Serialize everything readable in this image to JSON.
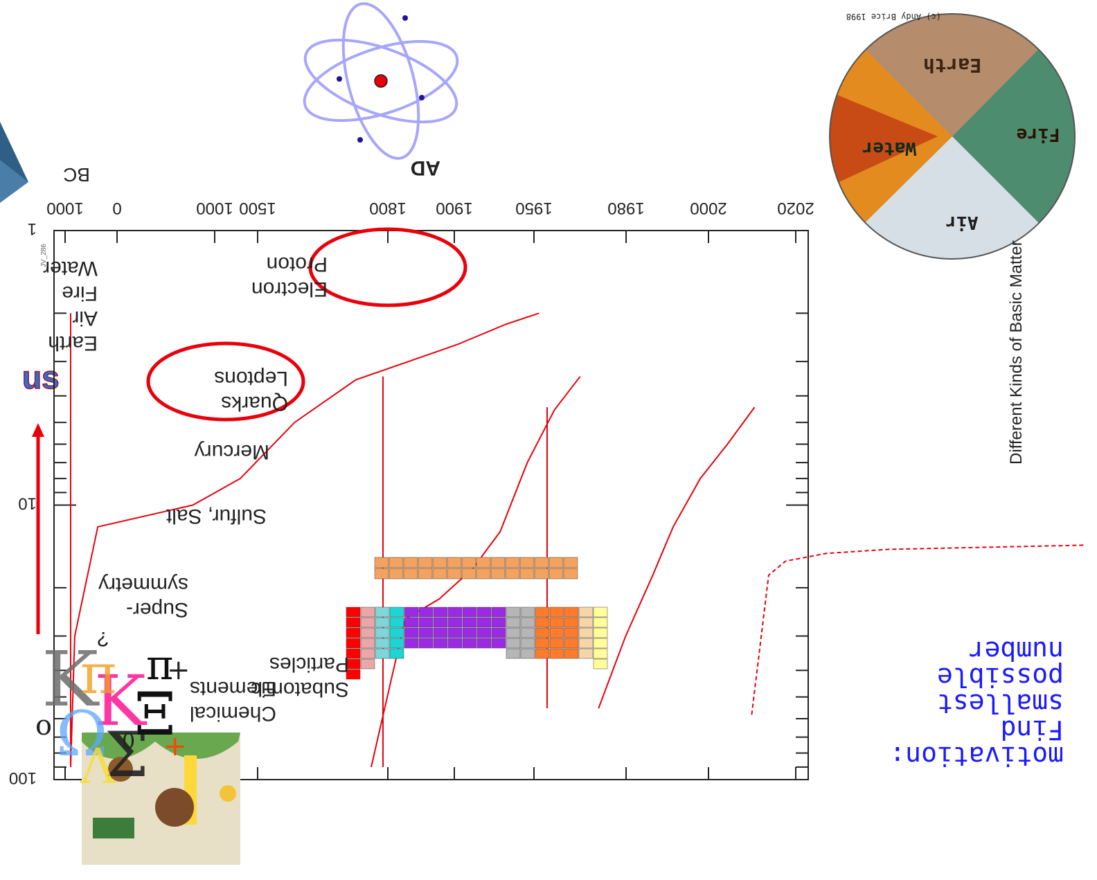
{
  "chart_data": {
    "type": "line",
    "ylabel": "Different Kinds of Basic Matter",
    "y_scale": "log",
    "ylim": [
      1,
      100
    ],
    "y_ticks": [
      "1",
      "10",
      "100"
    ],
    "x_ticks": [
      "1000",
      "0",
      "1000",
      "1500",
      "1800",
      "1900",
      "1950",
      "1980",
      "2000",
      "2020"
    ],
    "era_labels": [
      "BC",
      "AD"
    ],
    "side_label": "JV_286",
    "series_paths": {
      "classical": [
        [
          0,
          90
        ],
        [
          6,
          30
        ],
        [
          40,
          12
        ],
        [
          180,
          10
        ],
        [
          250,
          8
        ],
        [
          330,
          5
        ],
        [
          420,
          3.5
        ],
        [
          570,
          2.6
        ],
        [
          640,
          2.2
        ],
        [
          690,
          2
        ]
      ],
      "chemical": [
        [
          900,
          90
        ],
        [
          950,
          26
        ],
        [
          1000,
          22
        ],
        [
          1050,
          17
        ],
        [
          1090,
          12.5
        ],
        [
          1130,
          7
        ],
        [
          1170,
          4.5
        ],
        [
          1208,
          3.4
        ]
      ],
      "subatomic": [
        [
          1290,
          55
        ],
        [
          1330,
          30
        ],
        [
          1370,
          18
        ],
        [
          1400,
          12
        ],
        [
          1440,
          8
        ],
        [
          1480,
          6
        ],
        [
          1520,
          4.4
        ]
      ],
      "supersymmetry": [
        [
          1530,
          58
        ],
        [
          1555,
          18
        ],
        [
          1580,
          16
        ],
        [
          1640,
          15
        ],
        [
          1730,
          14.5
        ],
        [
          1900,
          14.2
        ],
        [
          2020,
          14
        ]
      ]
    },
    "annotations": [
      {
        "lines": [
          "Earth",
          "Air",
          "Fire",
          "Water"
        ]
      },
      {
        "lines": [
          "Mercury"
        ]
      },
      {
        "lines": [
          "Sulfur, Salt"
        ]
      },
      {
        "lines": [
          "Chemical",
          "Elements"
        ]
      },
      {
        "lines": [
          "Electron",
          "Proton"
        ]
      },
      {
        "lines": [
          "Subatomic",
          "Particles"
        ]
      },
      {
        "lines": [
          "Quarks",
          "Leptons"
        ]
      },
      {
        "lines": [
          "Super-",
          "symmetry"
        ]
      },
      {
        "lines": [
          "?"
        ]
      }
    ]
  },
  "motivation": {
    "lines": [
      "motivation:",
      "Find",
      "smallest",
      "possible",
      "number"
    ]
  },
  "elements_image": {
    "label": "Earth",
    "labels": [
      "Earth",
      "Water",
      "Fire",
      "Air"
    ],
    "credit": "(c) Andy Brice 1998"
  },
  "colors": {
    "curve": "#e8000b",
    "ellipse": "#e8000b",
    "motivation_text": "#1a1aff",
    "atom_orbit": "#a6a6ff",
    "axis": "#222222"
  }
}
